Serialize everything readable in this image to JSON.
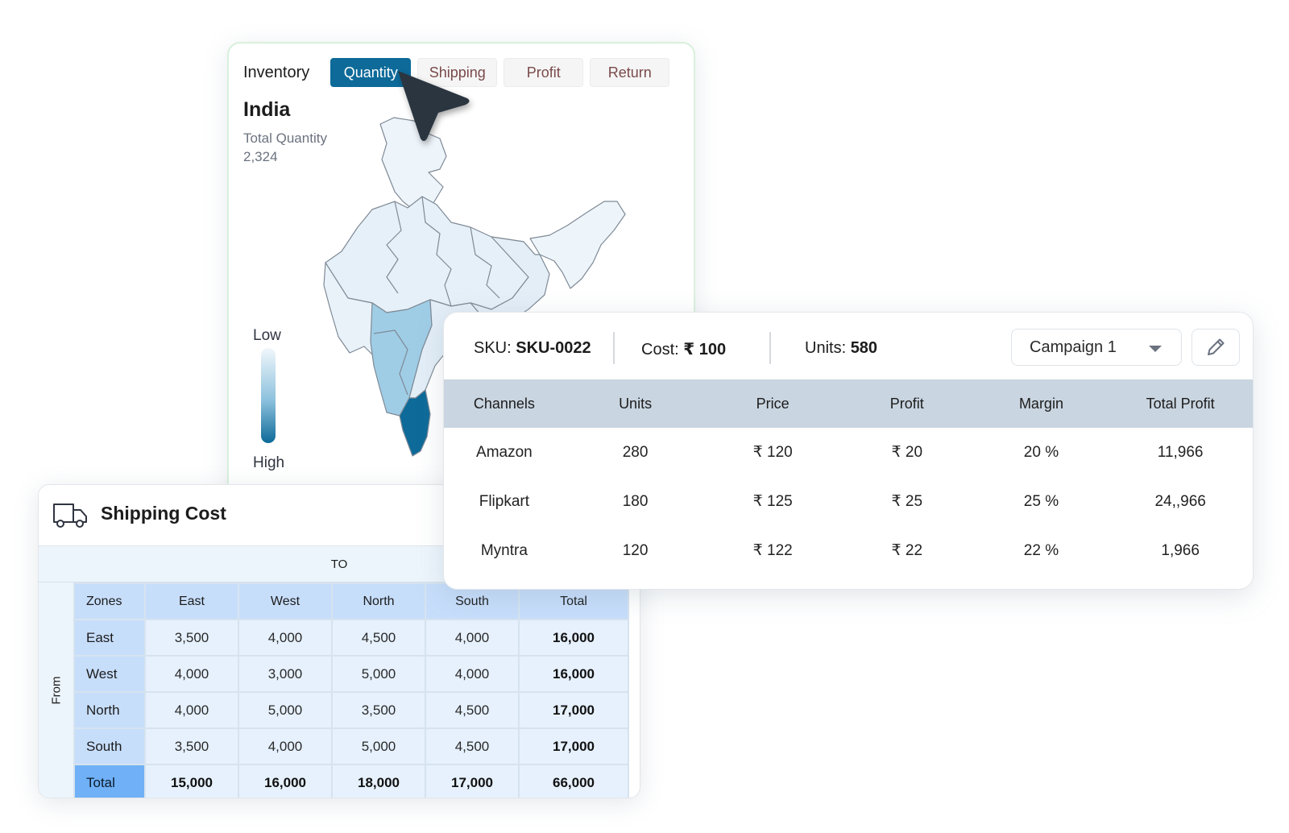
{
  "inventory": {
    "title": "Inventory",
    "tabs": [
      {
        "label": "Quantity",
        "active": true
      },
      {
        "label": "Shipping",
        "active": false
      },
      {
        "label": "Profit",
        "active": false
      },
      {
        "label": "Return",
        "active": false
      }
    ],
    "country": "India",
    "total_label": "Total Quantity",
    "total_value": "2,324",
    "legend": {
      "low": "Low",
      "high": "High"
    },
    "colors": {
      "active_tab": "#0d6a99",
      "low": "#f1f7fb",
      "high": "#0d6a99"
    }
  },
  "sku_card": {
    "sku_label": "SKU:",
    "sku_value": "SKU-0022",
    "cost_label": "Cost:",
    "cost_value": "₹ 100",
    "units_label": "Units:",
    "units_value": "580",
    "campaign": "Campaign 1",
    "columns": [
      "Channels",
      "Units",
      "Price",
      "Profit",
      "Margin",
      "Total Profit"
    ],
    "rows": [
      [
        "Amazon",
        "280",
        "₹ 120",
        "₹ 20",
        "20 %",
        "11,966"
      ],
      [
        "Flipkart",
        "180",
        "₹ 125",
        "₹ 25",
        "25 %",
        "24,,966"
      ],
      [
        "Myntra",
        "120",
        "₹ 122",
        "₹ 22",
        "22 %",
        "1,966"
      ]
    ]
  },
  "shipping": {
    "title": "Shipping Cost",
    "to_label": "TO",
    "from_label": "From",
    "columns": [
      "Zones",
      "East",
      "West",
      "North",
      "South",
      "Total"
    ],
    "rows": [
      [
        "East",
        "3,500",
        "4,000",
        "4,500",
        "4,000",
        "16,000"
      ],
      [
        "West",
        "4,000",
        "3,000",
        "5,000",
        "4,000",
        "16,000"
      ],
      [
        "North",
        "4,000",
        "5,000",
        "3,500",
        "4,500",
        "17,000"
      ],
      [
        "South",
        "3,500",
        "4,000",
        "5,000",
        "4,500",
        "17,000"
      ]
    ],
    "total_row": [
      "Total",
      "15,000",
      "16,000",
      "18,000",
      "17,000",
      "66,000"
    ]
  }
}
